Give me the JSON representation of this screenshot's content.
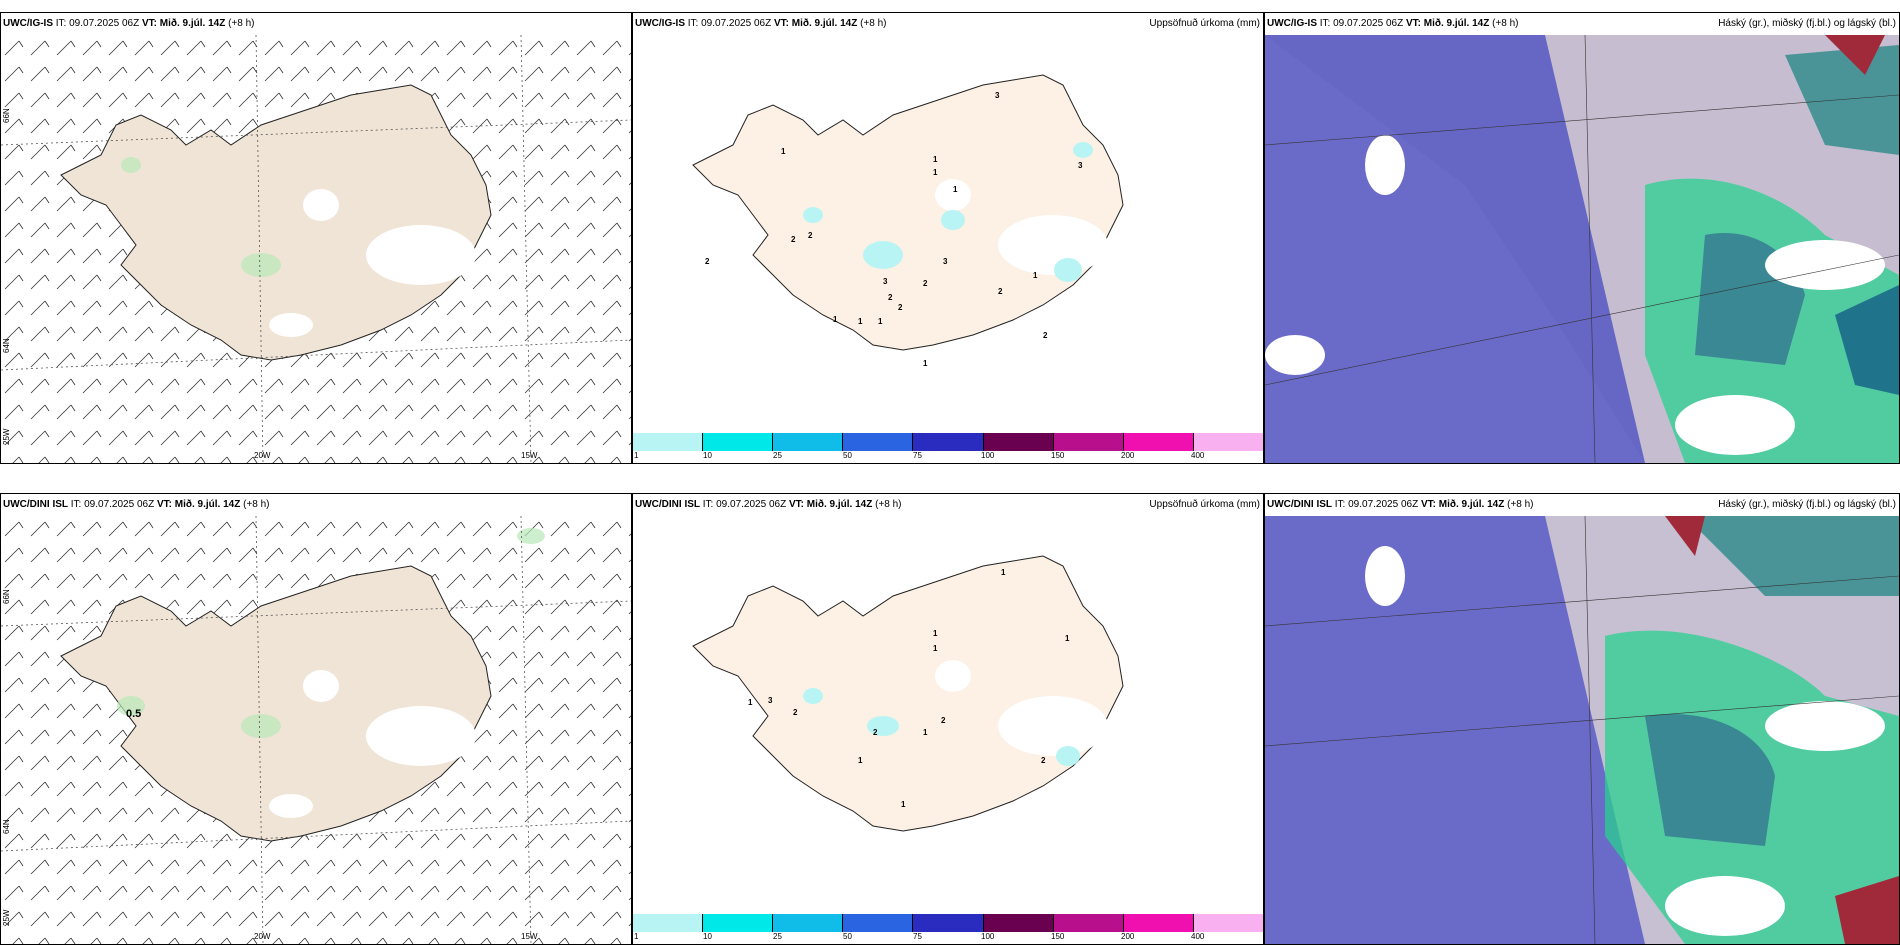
{
  "panels": [
    {
      "model": "UWC/IG-IS",
      "it_label": "IT:",
      "it": "09.07.2025 06Z",
      "vt_label": "VT:",
      "vt": "Mið. 9.júl. 14Z",
      "lead": "(+8 h)",
      "right": ""
    },
    {
      "model": "UWC/IG-IS",
      "it_label": "IT:",
      "it": "09.07.2025 06Z",
      "vt_label": "VT:",
      "vt": "Mið. 9.júl. 14Z",
      "lead": "(+8 h)",
      "right": "Uppsöfnuð úrkoma (mm)"
    },
    {
      "model": "UWC/IG-IS",
      "it_label": "IT:",
      "it": "09.07.2025 06Z",
      "vt_label": "VT:",
      "vt": "Mið. 9.júl. 14Z",
      "lead": "(+8 h)",
      "right": "Háský (gr.), miðský (fj.bl.) og lágský (bl.)"
    },
    {
      "model": "UWC/DINI ISL",
      "it_label": "IT:",
      "it": "09.07.2025 06Z",
      "vt_label": "VT:",
      "vt": "Mið. 9.júl. 14Z",
      "lead": "(+8 h)",
      "right": ""
    },
    {
      "model": "UWC/DINI ISL",
      "it_label": "IT:",
      "it": "09.07.2025 06Z",
      "vt_label": "VT:",
      "vt": "Mið. 9.júl. 14Z",
      "lead": "(+8 h)",
      "right": "Uppsöfnuð úrkoma (mm)"
    },
    {
      "model": "UWC/DINI ISL",
      "it_label": "IT:",
      "it": "09.07.2025 06Z",
      "vt_label": "VT:",
      "vt": "Mið. 9.júl. 14Z",
      "lead": "(+8 h)",
      "right": "Háský (gr.), miðský (fj.bl.) og lágský (bl.)"
    }
  ],
  "grid_labels": {
    "lat66": "66N",
    "lat64": "64N",
    "lon25": "25W",
    "lon20": "20W",
    "lon15": "15W"
  },
  "colorbar": {
    "ticks": [
      "1",
      "10",
      "25",
      "50",
      "75",
      "100",
      "150",
      "200",
      "400"
    ],
    "colors": [
      "#b8f4f4",
      "#00e8e8",
      "#10bce8",
      "#2a64e0",
      "#2a2cc0",
      "#6a0050",
      "#b8108c",
      "#f010b0",
      "#f8b0f0"
    ]
  },
  "precip_labels_top": [
    "3",
    "1",
    "1",
    "1",
    "1",
    "3",
    "2",
    "2",
    "3",
    "3",
    "2",
    "2",
    "2",
    "2",
    "2",
    "1",
    "1",
    "1",
    "1",
    "2",
    "1"
  ],
  "precip_labels_bottom": [
    "1",
    "1",
    "1",
    "1",
    "1",
    "3",
    "2",
    "2",
    "1",
    "2",
    "2",
    "1",
    "1"
  ],
  "wind_label_bottom": "0.5",
  "colors": {
    "land": "#f0e4d6",
    "land_light": "#fdf0e4",
    "cloud_low": "#6a6ac8",
    "cloud_high": "#2ad090",
    "cloud_mid": "#2a5a8a"
  }
}
